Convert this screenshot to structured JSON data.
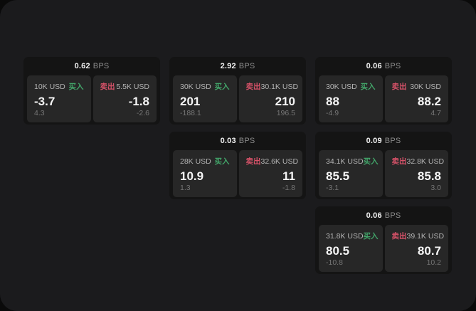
{
  "labels": {
    "bps_unit": "BPS",
    "buy": "买入",
    "sell": "卖出"
  },
  "colors": {
    "window_bg": "#1b1b1d",
    "card_bg": "#141414",
    "panel_bg": "#272727",
    "buy_green": "#42a469",
    "sell_red": "#d75269"
  },
  "cards": [
    {
      "bps": "0.62",
      "buy": {
        "size": "10K USD",
        "price": "-3.7",
        "delta": "4.3"
      },
      "sell": {
        "size": "5.5K USD",
        "price": "-1.8",
        "delta": "-2.6"
      }
    },
    {
      "bps": "2.92",
      "buy": {
        "size": "30K USD",
        "price": "201",
        "delta": "-188.1"
      },
      "sell": {
        "size": "30.1K USD",
        "price": "210",
        "delta": "196.5"
      }
    },
    {
      "bps": "0.06",
      "buy": {
        "size": "30K USD",
        "price": "88",
        "delta": "-4.9"
      },
      "sell": {
        "size": "30K USD",
        "price": "88.2",
        "delta": "4.7"
      }
    },
    {
      "bps": "0.03",
      "buy": {
        "size": "28K USD",
        "price": "10.9",
        "delta": "1.3"
      },
      "sell": {
        "size": "32.6K USD",
        "price": "11",
        "delta": "-1.8"
      }
    },
    {
      "bps": "0.09",
      "buy": {
        "size": "34.1K USD",
        "price": "85.5",
        "delta": "-3.1"
      },
      "sell": {
        "size": "32.8K USD",
        "price": "85.8",
        "delta": "3.0"
      }
    },
    {
      "bps": "0.06",
      "buy": {
        "size": "31.8K USD",
        "price": "80.5",
        "delta": "-10.8"
      },
      "sell": {
        "size": "39.1K USD",
        "price": "80.7",
        "delta": "10.2"
      }
    }
  ]
}
